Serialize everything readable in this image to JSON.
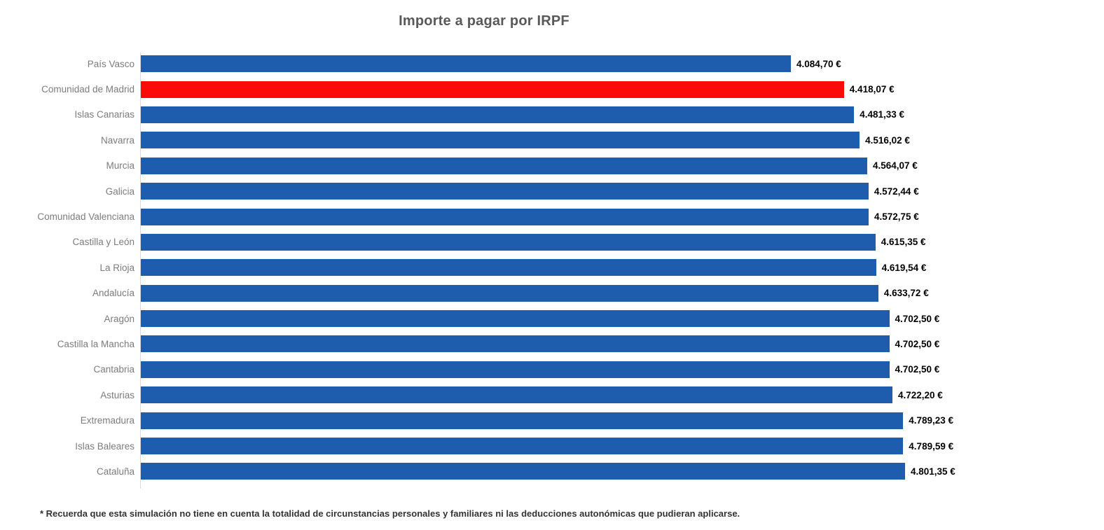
{
  "title": "Importe a pagar por IRPF",
  "footnote": "* Recuerda que esta simulación no tiene en cuenta la totalidad de circunstancias personales y familiares ni las deducciones autonómicas que pudieran aplicarse.",
  "colors": {
    "bar": "#1e5cad",
    "highlight": "#fb0a0a",
    "title_text": "#595959",
    "category_text": "#7c7c7c",
    "value_text": "#000000",
    "footnote_text": "#333333",
    "axis_line": "#d9d9d9"
  },
  "chart_data": {
    "type": "bar",
    "orientation": "horizontal",
    "title": "Importe a pagar por IRPF",
    "xlabel": "",
    "ylabel": "",
    "xlim": [
      0,
      4801.35
    ],
    "grid": false,
    "legend": false,
    "highlighted_category": "Comunidad de Madrid",
    "categories": [
      "País Vasco",
      "Comunidad de Madrid",
      "Islas Canarias",
      "Navarra",
      "Murcia",
      "Galicia",
      "Comunidad Valenciana",
      "Castilla y León",
      "La Rioja",
      "Andalucía",
      "Aragón",
      "Castilla la Mancha",
      "Cantabria",
      "Asturias",
      "Extremadura",
      "Islas Baleares",
      "Cataluña"
    ],
    "values": [
      4084.7,
      4418.07,
      4481.33,
      4516.02,
      4564.07,
      4572.44,
      4572.75,
      4615.35,
      4619.54,
      4633.72,
      4702.5,
      4702.5,
      4702.5,
      4722.2,
      4789.23,
      4789.59,
      4801.35
    ],
    "value_labels": [
      "4.084,70 €",
      "4.418,07 €",
      "4.481,33 €",
      "4.516,02 €",
      "4.564,07 €",
      "4.572,44 €",
      "4.572,75 €",
      "4.615,35 €",
      "4.619,54 €",
      "4.633,72 €",
      "4.702,50 €",
      "4.702,50 €",
      "4.702,50 €",
      "4.722,20 €",
      "4.789,23 €",
      "4.789,59 €",
      "4.801,35 €"
    ]
  }
}
